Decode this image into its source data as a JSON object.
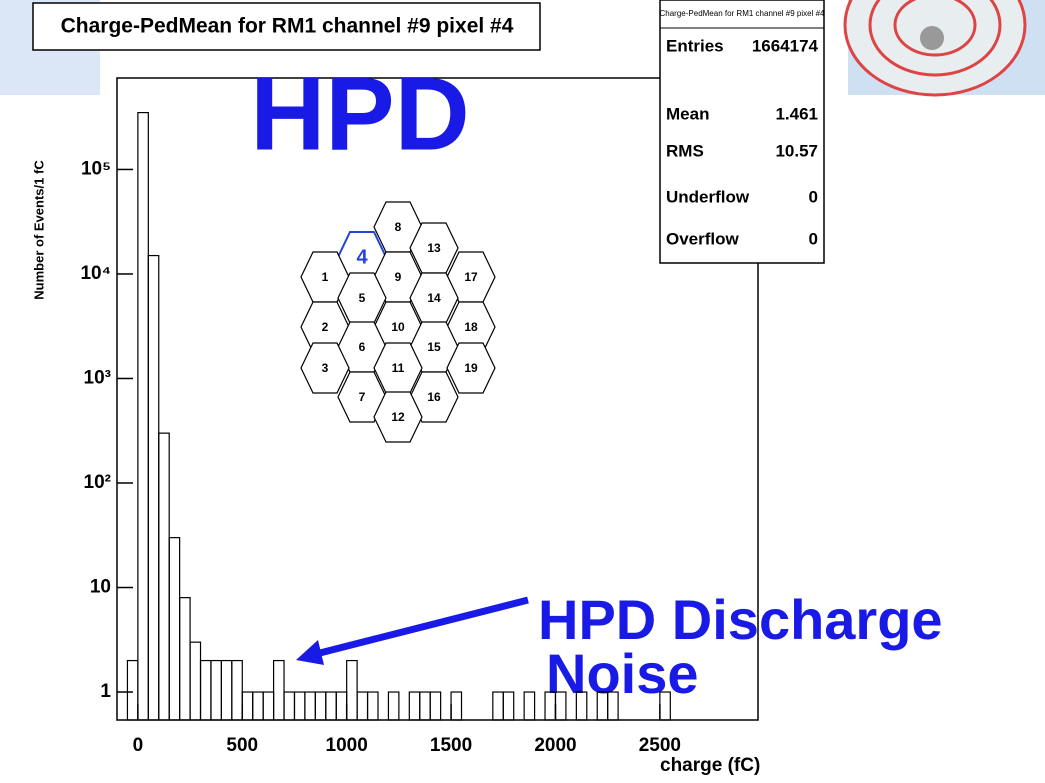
{
  "chart_data": {
    "type": "histogram",
    "title": "Charge-PedMean for RM1 channel #9 pixel #4",
    "x_label": "charge (fC)",
    "y_label": "Number of Events/1 fC",
    "log_y": true,
    "color": "#000000",
    "bins": [
      -50,
      0,
      50,
      100,
      150,
      200,
      250,
      300,
      350,
      400,
      450,
      500,
      550,
      600,
      650,
      700,
      750,
      800,
      850,
      900,
      950,
      1000,
      1050,
      1100,
      1150,
      1200,
      1250,
      1300,
      1350,
      1400,
      1450,
      1500,
      1550,
      1600,
      1650,
      1700,
      1750,
      1800,
      1850,
      1900,
      1950,
      2000,
      2050,
      2100,
      2150,
      2200,
      2250,
      2300,
      2350,
      2400,
      2450,
      2500,
      2550
    ],
    "values": [
      2,
      350000,
      15000,
      300,
      30,
      8,
      3,
      2,
      2,
      2,
      2,
      1,
      1,
      1,
      2,
      1,
      1,
      1,
      1,
      1,
      1,
      2,
      1,
      1,
      0,
      1,
      0,
      1,
      1,
      1,
      0,
      1,
      0,
      0,
      0,
      1,
      1,
      0,
      1,
      0,
      1,
      1,
      0,
      1,
      0,
      1,
      1,
      0,
      0,
      0,
      0,
      1
    ],
    "xlim": [
      -100,
      2970
    ],
    "ylim": [
      0.54,
      750000
    ],
    "xticks": [
      0,
      500,
      1000,
      1500,
      2000,
      2500
    ],
    "yticks": [
      1,
      10,
      {
        "value": 100,
        "label": "10²"
      },
      {
        "value": 1000,
        "label": "10³"
      },
      {
        "value": 10000,
        "label": "10⁴"
      },
      {
        "value": 100000,
        "label": "10⁵"
      }
    ],
    "stats": {
      "title": "Charge-PedMean for RM1 channel #9 pixel #4",
      "rows": [
        {
          "label": "Entries",
          "value": 1664174
        },
        {
          "label": "Mean",
          "value": 1.461
        },
        {
          "label": "RMS",
          "value": 10.57
        },
        {
          "label": "Underflow",
          "value": 0
        },
        {
          "label": "Overflow",
          "value": 0
        }
      ]
    },
    "annotations": [
      "HPD",
      "HPD Discharge",
      "Noise"
    ],
    "pixel_map": [
      "8",
      "4",
      "13",
      "1",
      "9",
      "17",
      "5",
      "14",
      "2",
      "10",
      "18",
      "6",
      "15",
      "3",
      "11",
      "19",
      "7",
      "16",
      "12"
    ]
  }
}
